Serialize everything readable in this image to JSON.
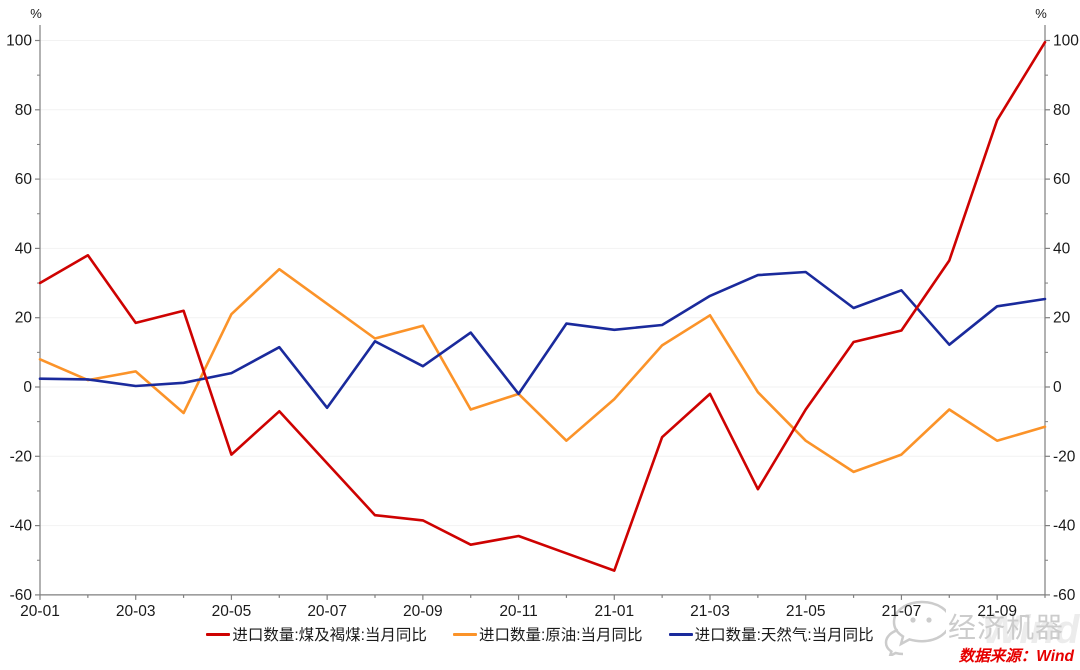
{
  "chart": {
    "y_unit_left": "%",
    "y_unit_right": "%",
    "source_note": "数据来源：Wind",
    "watermark_brand": "经济机器",
    "watermark_wind": "Wind"
  },
  "chart_data": {
    "type": "line",
    "title": "",
    "xlabel": "",
    "ylabel": "%",
    "x": [
      "20-01",
      "20-02",
      "20-03",
      "20-04",
      "20-05",
      "20-06",
      "20-07",
      "20-08",
      "20-09",
      "20-10",
      "20-11",
      "20-12",
      "21-01",
      "21-02",
      "21-03",
      "21-04",
      "21-05",
      "21-06",
      "21-07",
      "21-08",
      "21-09",
      "21-10"
    ],
    "x_tick_labels": [
      "20-01",
      "20-03",
      "20-05",
      "20-07",
      "20-09",
      "20-11",
      "21-01",
      "21-03",
      "21-05",
      "21-07",
      "21-09"
    ],
    "ylim": [
      -60,
      100
    ],
    "y_ticks": [
      -60,
      -40,
      -20,
      0,
      20,
      40,
      60,
      80,
      100
    ],
    "grid": true,
    "legend_position": "bottom",
    "series": [
      {
        "name": "进口数量:煤及褐煤:当月同比",
        "color": "#CE0201",
        "values": [
          30,
          38,
          18.5,
          22,
          -19.5,
          -7,
          -22,
          -37,
          -38.5,
          -45.5,
          -43,
          -48,
          -53,
          -14.5,
          -2,
          -29.5,
          -6.5,
          13,
          16.3,
          36.5,
          77,
          99.5
        ]
      },
      {
        "name": "进口数量:原油:当月同比",
        "color": "#FB9329",
        "values": [
          8,
          2,
          4.5,
          -7.5,
          21,
          34,
          24,
          14,
          17.7,
          -6.5,
          -2,
          -15.5,
          -3.5,
          12,
          20.7,
          -1.5,
          -15.5,
          -24.5,
          -19.5,
          -6.5,
          -15.5,
          -11.5
        ]
      },
      {
        "name": "进口数量:天然气:当月同比",
        "color": "#1A2A9C",
        "values": [
          2.4,
          2.2,
          0.3,
          1.2,
          4,
          11.5,
          -6,
          13.2,
          6,
          15.7,
          -2,
          18.3,
          16.5,
          17.9,
          26.3,
          32.3,
          33.2,
          22.8,
          27.9,
          12.2,
          23.3,
          25.4
        ]
      }
    ]
  }
}
